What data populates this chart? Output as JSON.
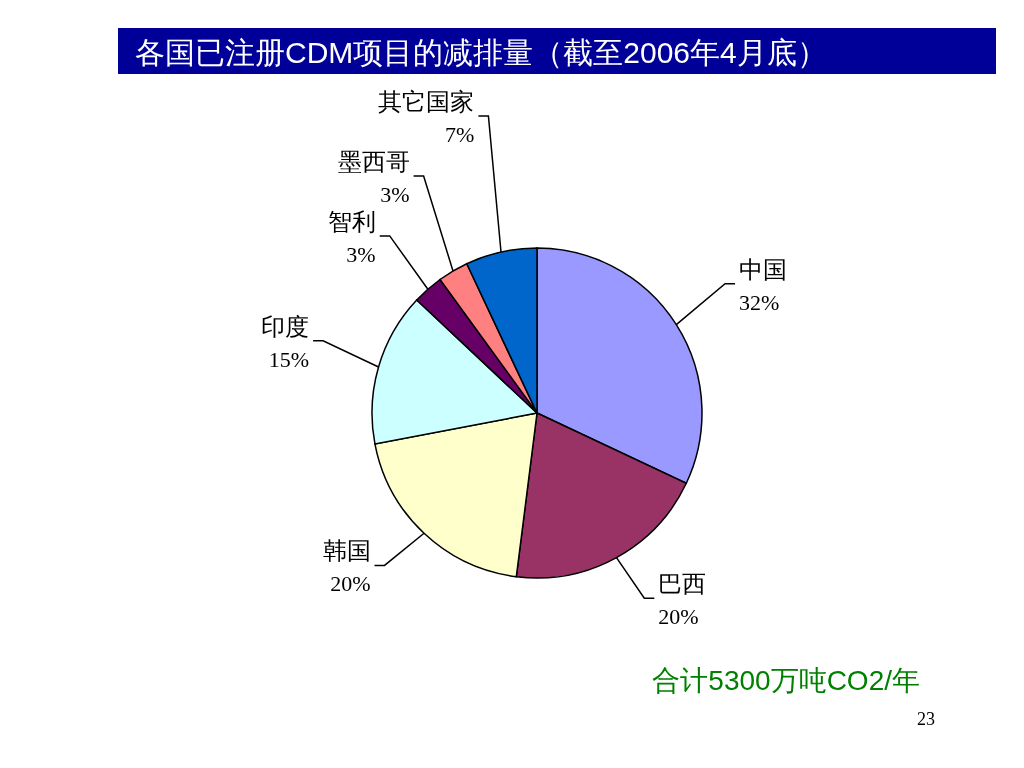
{
  "chart_data": {
    "type": "pie",
    "title": "各国已注册CDM项目的减排量（截至2006年4月底）",
    "categories": [
      "中国",
      "巴西",
      "韩国",
      "印度",
      "智利",
      "墨西哥",
      "其它国家"
    ],
    "values": [
      32,
      20,
      20,
      15,
      3,
      3,
      7
    ],
    "colors": [
      "#9999ff",
      "#993366",
      "#ffffcc",
      "#ccffff",
      "#660066",
      "#ff8080",
      "#0066cc"
    ],
    "value_labels": [
      "32%",
      "20%",
      "20%",
      "15%",
      "3%",
      "3%",
      "7%"
    ],
    "annotations": [
      "合计5300万吨CO2/年",
      "23"
    ]
  }
}
